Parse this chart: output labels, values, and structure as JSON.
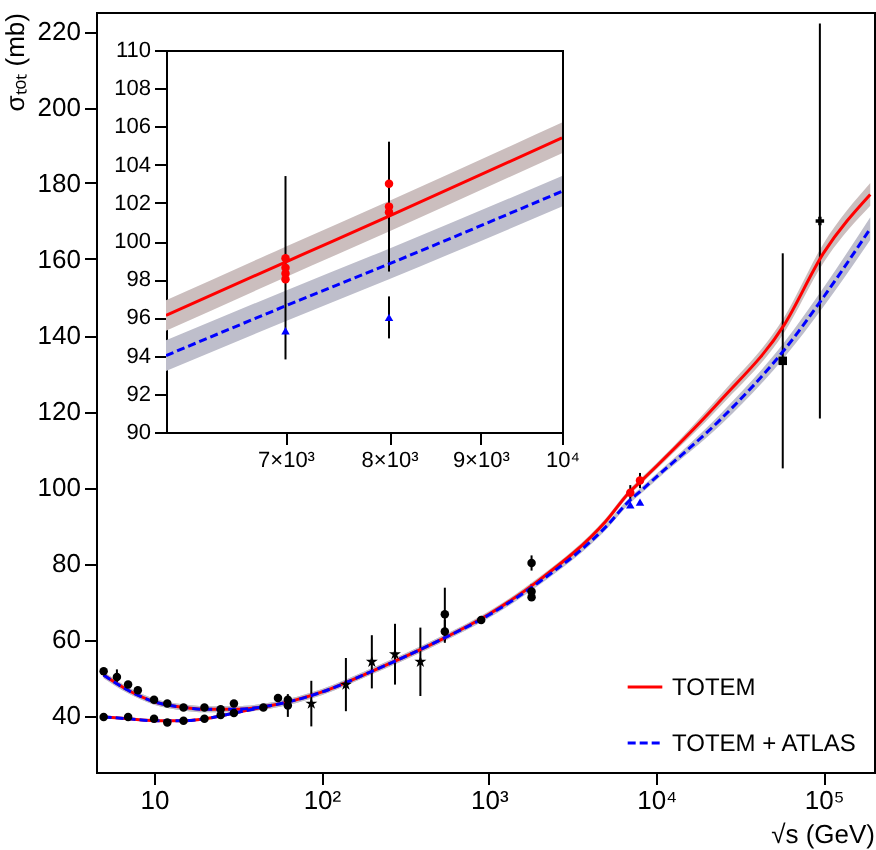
{
  "chart_data": [
    {
      "type": "line",
      "xlabel": "√s (GeV)",
      "ylabel": "σₜₒₜ (mb)",
      "log": "x",
      "xlim": [
        4.5,
        200000
      ],
      "ylim": [
        25,
        225
      ],
      "xticks": [
        {
          "value": 10,
          "label": "10"
        },
        {
          "value": 100,
          "label": "10²"
        },
        {
          "value": 1000,
          "label": "10³"
        },
        {
          "value": 10000,
          "label": "10⁴"
        },
        {
          "value": 100000,
          "label": "10⁵"
        }
      ],
      "yticks": [
        40,
        60,
        80,
        100,
        120,
        140,
        160,
        180,
        200,
        220
      ],
      "legend": "bottom right",
      "series": [
        {
          "type": "scatter",
          "color": "#000000",
          "marker": "circle",
          "x": [
            5,
            6,
            7,
            8,
            10,
            12,
            15,
            20,
            25,
            30,
            5,
            7,
            10,
            12,
            15,
            20,
            25,
            30,
            45,
            55,
            63,
            63,
            546,
            546,
            900,
            1800,
            1800,
            1800
          ],
          "values": [
            51.5,
            50,
            48,
            46.5,
            44,
            43,
            42,
            42,
            41.5,
            43,
            39.5,
            39.5,
            39,
            38,
            38.5,
            39,
            40,
            40.5,
            42,
            44.5,
            44,
            42.5,
            66.5,
            62,
            65,
            80,
            72.5,
            71
          ],
          "errors": [
            null,
            2,
            null,
            null,
            null,
            null,
            null,
            null,
            null,
            null,
            null,
            null,
            null,
            null,
            null,
            null,
            null,
            null,
            null,
            null,
            null,
            3,
            7,
            3,
            null,
            2,
            2,
            null
          ]
        },
        {
          "type": "scatter",
          "color": "#000000",
          "marker": "star",
          "x": [
            87,
            140,
            200,
            275,
            390
          ],
          "values": [
            43,
            48,
            54,
            56,
            54
          ],
          "errors": [
            6,
            7,
            7,
            8,
            9
          ]
        },
        {
          "type": "scatter",
          "color": "#000000",
          "marker": "square",
          "x": [
            57000
          ],
          "values": [
            133.2
          ],
          "errors": [
            28.3
          ]
        },
        {
          "type": "scatter",
          "color": "#000000",
          "marker": "cross",
          "x": [
            95000
          ],
          "values": [
            170
          ],
          "errors": [
            52
          ]
        },
        {
          "name": "TOTEM",
          "type": "line",
          "color": "#ff0000",
          "line_style": "solid",
          "x": [
            5,
            7,
            10,
            15,
            20,
            30,
            50,
            100,
            200,
            500,
            1000,
            2000,
            5000,
            7000,
            8000,
            10000,
            24500,
            58000,
            100000,
            190000
          ],
          "values": [
            50.5,
            46.5,
            43.5,
            42,
            41.5,
            41.5,
            42.5,
            46,
            51.5,
            59.5,
            66.5,
            75.5,
            91,
            98.9,
            101.3,
            105.4,
            123,
            142.6,
            161.6,
            177
          ],
          "lower": [
            49.7,
            45.7,
            42.7,
            41.2,
            40.7,
            40.7,
            41.7,
            45.2,
            50.7,
            58.7,
            65.7,
            74.7,
            90.2,
            98.1,
            100.5,
            104.6,
            121.5,
            140.6,
            159.1,
            174
          ],
          "upper": [
            51.3,
            47.3,
            44.3,
            42.8,
            42.3,
            42.3,
            43.3,
            46.8,
            52.3,
            60.3,
            67.3,
            76.3,
            91.8,
            99.7,
            102.1,
            106.2,
            124.5,
            144.6,
            164.1,
            180
          ]
        },
        {
          "type": "line",
          "color": "#ff0000",
          "line_style": "solid",
          "x": [
            5,
            7,
            10,
            15,
            20,
            30,
            50
          ],
          "values": [
            39.5,
            39,
            38.5,
            38.5,
            39,
            40.5,
            42.5
          ]
        },
        {
          "name": "TOTEM + ATLAS",
          "type": "line",
          "color": "#0000ff",
          "line_style": "dashed",
          "x": [
            5,
            7,
            10,
            15,
            20,
            30,
            50,
            100,
            200,
            500,
            1000,
            2000,
            5000,
            7000,
            8000,
            10000,
            24500,
            58000,
            100000,
            190000
          ],
          "values": [
            50.5,
            46.5,
            43.5,
            42,
            41.5,
            41.5,
            42.5,
            46,
            51.5,
            59.5,
            66.3,
            75,
            89.5,
            96.6,
            98.8,
            102.6,
            118,
            136,
            150,
            168
          ],
          "lower": [
            49.7,
            45.7,
            42.7,
            41.2,
            40.7,
            40.7,
            41.7,
            45.2,
            50.7,
            58.7,
            65.5,
            74.2,
            88.7,
            95.8,
            98,
            101.8,
            116.5,
            134,
            147.5,
            165
          ],
          "upper": [
            51.3,
            47.3,
            44.3,
            42.8,
            42.3,
            42.3,
            43.3,
            46.8,
            52.3,
            60.3,
            67.1,
            75.8,
            90.3,
            97.4,
            99.6,
            103.4,
            119.5,
            138,
            152.5,
            171
          ]
        },
        {
          "type": "line",
          "color": "#0000ff",
          "line_style": "dashed",
          "x": [
            5,
            7,
            10,
            15,
            20,
            30,
            50
          ],
          "values": [
            39.5,
            39,
            38.5,
            38.5,
            39,
            40.5,
            42.5
          ]
        },
        {
          "type": "scatter",
          "color": "#ff0000",
          "marker": "circle",
          "x": [
            7000,
            8000
          ],
          "values": [
            98.5,
            101.7
          ],
          "errors": [
            2,
            2
          ]
        },
        {
          "type": "scatter",
          "color": "#0000ff",
          "marker": "triangle",
          "x": [
            7000,
            8000
          ],
          "values": [
            95.3,
            96.0
          ]
        }
      ]
    },
    {
      "type": "line",
      "log": "x",
      "xlim": [
        6000,
        10000
      ],
      "ylim": [
        90,
        110
      ],
      "xticks": [
        {
          "value": 7000,
          "label": "7×10³"
        },
        {
          "value": 8000,
          "label": "8×10³"
        },
        {
          "value": 9000,
          "label": "9×10³"
        },
        {
          "value": 10000,
          "label": "10⁴"
        }
      ],
      "yticks": [
        90,
        92,
        94,
        96,
        98,
        100,
        102,
        104,
        106,
        108,
        110
      ],
      "series": [
        {
          "type": "line",
          "color": "#ff0000",
          "line_style": "solid",
          "x": [
            6000,
            7000,
            8000,
            10000
          ],
          "values": [
            96.1,
            98.9,
            101.3,
            105.4
          ],
          "lower": [
            95.3,
            98.1,
            100.5,
            104.6
          ],
          "upper": [
            96.9,
            99.7,
            102.1,
            106.2
          ]
        },
        {
          "type": "line",
          "color": "#0000ff",
          "line_style": "dashed",
          "x": [
            6000,
            7000,
            8000,
            10000
          ],
          "values": [
            94,
            96.6,
            98.8,
            102.6
          ],
          "lower": [
            93.2,
            95.8,
            98,
            101.8
          ],
          "upper": [
            94.8,
            97.4,
            99.6,
            103.4
          ]
        },
        {
          "type": "scatter",
          "color": "#ff0000",
          "marker": "circle",
          "x": [
            7000,
            7000,
            7000,
            7000,
            8000,
            8000,
            8000
          ],
          "values": [
            98.0,
            98.3,
            98.6,
            99.1,
            101.5,
            101.8,
            103.0
          ],
          "errors": [
            null,
            null,
            4.8,
            null,
            null,
            3.4,
            null
          ]
        },
        {
          "type": "scatter",
          "color": "#0000ff",
          "marker": "triangle",
          "x": [
            7000,
            8000
          ],
          "values": [
            95.3,
            96.0
          ],
          "errors": [
            null,
            1.1
          ]
        }
      ]
    }
  ]
}
